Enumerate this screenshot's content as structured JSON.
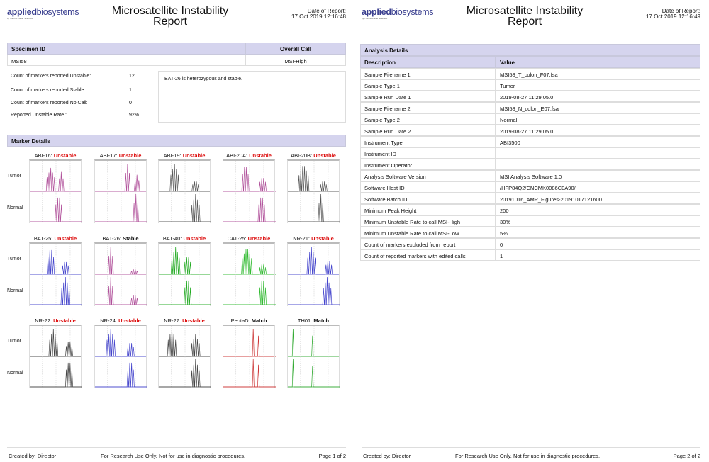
{
  "header": {
    "logo_bold": "applied",
    "logo_light": "biosystems",
    "logo_sub": "by Thermo Fisher Scientific",
    "title_line1": "Microsatellite Instability",
    "title_line2": "Report",
    "date_label": "Date of Report:",
    "date_page1": "17 Oct 2019 12:16:48",
    "date_page2": "17 Oct 2019 12:16:49"
  },
  "specimen": {
    "id_header": "Specimen ID",
    "call_header": "Overall Call",
    "id": "MSI58",
    "call": "MSI-High"
  },
  "stats": [
    {
      "label": "Count of markers reported Unstable:",
      "value": "12"
    },
    {
      "label": "Count of markers reported Stable:",
      "value": "1"
    },
    {
      "label": "Count of markers reported No Call:",
      "value": "0"
    },
    {
      "label": "Reported Unstable Rate :",
      "value": "92%"
    }
  ],
  "comment": "BAT-26 is heterozygous and stable.",
  "marker_details": {
    "header": "Marker Details",
    "tumor_label": "Tumor",
    "normal_label": "Normal",
    "markers": [
      {
        "name": "ABI-16:",
        "status": "Unstable",
        "color": "#b0509a"
      },
      {
        "name": "ABI-17:",
        "status": "Unstable",
        "color": "#b0509a"
      },
      {
        "name": "ABI-19:",
        "status": "Unstable",
        "color": "#555555"
      },
      {
        "name": "ABI-20A:",
        "status": "Unstable",
        "color": "#b0509a"
      },
      {
        "name": "ABI-20B:",
        "status": "Unstable",
        "color": "#555555"
      },
      {
        "name": "BAT-25:",
        "status": "Unstable",
        "color": "#4444cc"
      },
      {
        "name": "BAT-26:",
        "status": "Stable",
        "color": "#b0509a"
      },
      {
        "name": "BAT-40:",
        "status": "Unstable",
        "color": "#22aa22"
      },
      {
        "name": "CAT-25:",
        "status": "Unstable",
        "color": "#33bb33"
      },
      {
        "name": "NR-21:",
        "status": "Unstable",
        "color": "#4444cc"
      },
      {
        "name": "NR-22:",
        "status": "Unstable",
        "color": "#444444"
      },
      {
        "name": "NR-24:",
        "status": "Unstable",
        "color": "#4444cc"
      },
      {
        "name": "NR-27:",
        "status": "Unstable",
        "color": "#444444"
      },
      {
        "name": "PentaD:",
        "status": "Match",
        "color": "#cc3333"
      },
      {
        "name": "TH01:",
        "status": "Match",
        "color": "#33aa33"
      }
    ],
    "status_colors": {
      "Unstable": "#dd1111",
      "Stable": "#111111",
      "Match": "#111111"
    }
  },
  "analysis": {
    "header": "Analysis Details",
    "col_desc": "Description",
    "col_value": "Value",
    "rows": [
      {
        "d": "Sample Filename 1",
        "v": "MSI58_T_colon_F07.fsa"
      },
      {
        "d": "Sample Type 1",
        "v": "Tumor"
      },
      {
        "d": "Sample Run Date 1",
        "v": "2019-08-27 11:29:05.0"
      },
      {
        "d": "Sample Filename 2",
        "v": "MSI58_N_colon_E07.fsa"
      },
      {
        "d": "Sample Type 2",
        "v": "Normal"
      },
      {
        "d": "Sample Run Date 2",
        "v": "2019-08-27 11:29:05.0"
      },
      {
        "d": "Instrument Type",
        "v": "ABI3500"
      },
      {
        "d": "Instrument ID",
        "v": ""
      },
      {
        "d": "Instrument Operator",
        "v": ""
      },
      {
        "d": "Analysis Software Version",
        "v": "MSI Analysis Software 1.0"
      },
      {
        "d": "Software Host ID",
        "v": "/HFP84Q2/CNCMK0086C0A90/"
      },
      {
        "d": "Software Batch ID",
        "v": "20191016_AMP_Figures-20191017121600"
      },
      {
        "d": "Minimum Peak Height",
        "v": "200"
      },
      {
        "d": "Minimum Unstable Rate to call MSI-High",
        "v": "30%"
      },
      {
        "d": "Minimum Unstable Rate to call MSI-Low",
        "v": "5%"
      },
      {
        "d": "Count of markers excluded from report",
        "v": "0"
      },
      {
        "d": "Count of reported markers with edited calls",
        "v": "1"
      }
    ]
  },
  "footer": {
    "created": "Created by: Director",
    "disclaimer": "For Research Use Only.  Not for use in diagnostic procedures.",
    "page1": "Page 1 of 2",
    "page2": "Page 2 of 2"
  }
}
